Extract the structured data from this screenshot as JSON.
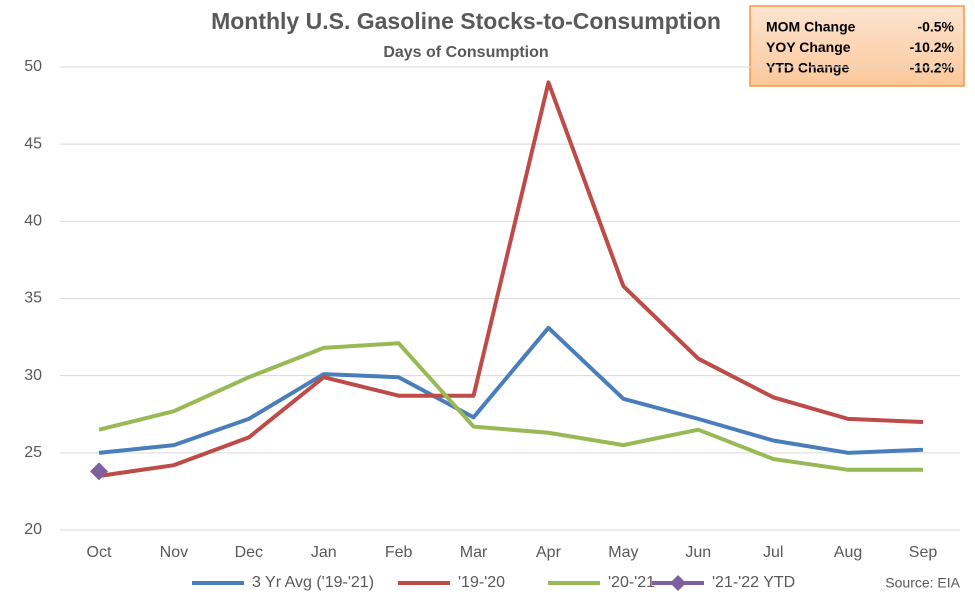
{
  "chart_data": {
    "type": "line",
    "title": "Monthly U.S. Gasoline Stocks-to-Consumption",
    "subtitle": "Days of Consumption",
    "categories": [
      "Oct",
      "Nov",
      "Dec",
      "Jan",
      "Feb",
      "Mar",
      "Apr",
      "May",
      "Jun",
      "Jul",
      "Aug",
      "Sep"
    ],
    "series": [
      {
        "name": "3 Yr Avg ('19-'21)",
        "color": "#4a7ebb",
        "values": [
          25.0,
          25.5,
          27.2,
          30.1,
          29.9,
          27.3,
          33.1,
          28.5,
          27.2,
          25.8,
          25.0,
          25.2
        ]
      },
      {
        "name": "'19-'20",
        "color": "#be4b48",
        "values": [
          23.5,
          24.2,
          26.0,
          29.9,
          28.7,
          28.7,
          49.0,
          35.8,
          31.1,
          28.6,
          27.2,
          27.0
        ]
      },
      {
        "name": "'20-'21",
        "color": "#98b954",
        "values": [
          26.5,
          27.7,
          29.9,
          31.8,
          32.1,
          26.7,
          26.3,
          25.5,
          26.5,
          24.6,
          23.9,
          23.9
        ]
      },
      {
        "name": "'21-'22 YTD",
        "color": "#7d60a0",
        "marker": "diamond",
        "values": [
          23.8,
          null,
          null,
          null,
          null,
          null,
          null,
          null,
          null,
          null,
          null,
          null
        ]
      }
    ],
    "ylim": [
      20,
      50
    ],
    "yticks": [
      20,
      25,
      30,
      35,
      40,
      45,
      50
    ],
    "grid": true,
    "legend": "bottom",
    "source": "Source: EIA",
    "info_box": [
      {
        "label": "MOM Change",
        "value": "-0.5%"
      },
      {
        "label": "YOY Change",
        "value": "-10.2%"
      },
      {
        "label": "YTD Change",
        "value": "-10.2%"
      }
    ]
  }
}
